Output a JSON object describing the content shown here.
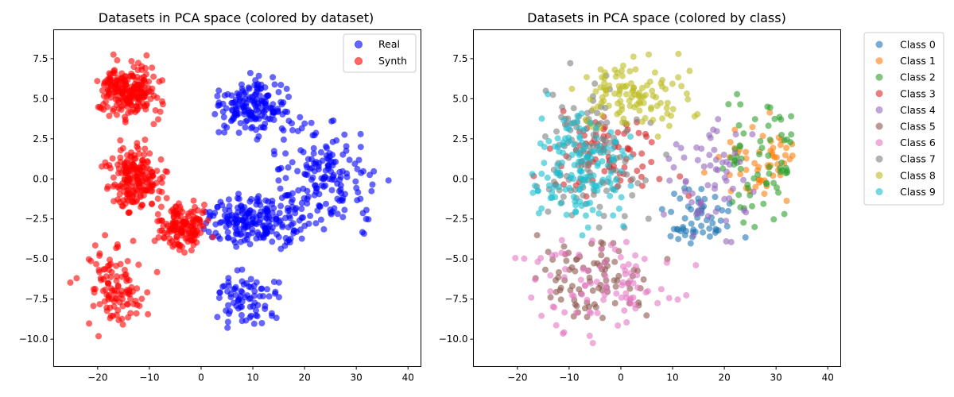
{
  "chart_data": [
    {
      "type": "scatter",
      "title": "Datasets in PCA space (colored by dataset)",
      "xlabel": "",
      "ylabel": "",
      "xlim": [
        -28.5,
        42.5
      ],
      "ylim": [
        -11.7,
        9.3
      ],
      "xticks": [
        -20,
        -10,
        0,
        10,
        20,
        30,
        40
      ],
      "yticks": [
        -10.0,
        -7.5,
        -5.0,
        -2.5,
        0.0,
        2.5,
        5.0,
        7.5
      ],
      "grid": false,
      "legend_position": "top-right",
      "series": [
        {
          "name": "Real",
          "color": "#0000ff",
          "clusters": [
            {
              "x_range": [
                0,
                20
              ],
              "y_range": [
                2,
                7
              ],
              "n": 170
            },
            {
              "x_range": [
                10,
                38
              ],
              "y_range": [
                -4.5,
                4.5
              ],
              "n": 170
            },
            {
              "x_range": [
                -5,
                25
              ],
              "y_range": [
                -5,
                -0.5
              ],
              "n": 200
            },
            {
              "x_range": [
                0,
                18
              ],
              "y_range": [
                -10,
                -5
              ],
              "n": 80
            }
          ]
        },
        {
          "name": "Synth",
          "color": "#ff0000",
          "clusters": [
            {
              "x_range": [
                -22,
                -6
              ],
              "y_range": [
                3,
                8
              ],
              "n": 230
            },
            {
              "x_range": [
                -20,
                -5
              ],
              "y_range": [
                -3,
                3
              ],
              "n": 200
            },
            {
              "x_range": [
                -10,
                4
              ],
              "y_range": [
                -5,
                -1
              ],
              "n": 150
            },
            {
              "x_range": [
                -26,
                -8
              ],
              "y_range": [
                -10.5,
                -3
              ],
              "n": 110
            }
          ]
        }
      ]
    },
    {
      "type": "scatter",
      "title": "Datasets in PCA space (colored by class)",
      "xlabel": "",
      "ylabel": "",
      "xlim": [
        -28.5,
        42.5
      ],
      "ylim": [
        -11.7,
        9.3
      ],
      "xticks": [
        -20,
        -10,
        0,
        10,
        20,
        30,
        40
      ],
      "yticks": [
        -10.0,
        -7.5,
        -5.0,
        -2.5,
        0.0,
        2.5,
        5.0,
        7.5
      ],
      "grid": false,
      "legend_position": "outside-right",
      "series": [
        {
          "name": "Class 0",
          "color": "#1f77b4",
          "clusters": [
            {
              "x_range": [
                5,
                25
              ],
              "y_range": [
                -5,
                0
              ],
              "n": 55
            }
          ]
        },
        {
          "name": "Class 1",
          "color": "#ff7f0e",
          "clusters": [
            {
              "x_range": [
                15,
                38
              ],
              "y_range": [
                -3,
                5
              ],
              "n": 55
            }
          ]
        },
        {
          "name": "Class 2",
          "color": "#2ca02c",
          "clusters": [
            {
              "x_range": [
                18,
                38
              ],
              "y_range": [
                -5,
                7
              ],
              "n": 65
            }
          ]
        },
        {
          "name": "Class 3",
          "color": "#d62728",
          "clusters": [
            {
              "x_range": [
                -20,
                15
              ],
              "y_range": [
                -3,
                6
              ],
              "n": 75
            }
          ]
        },
        {
          "name": "Class 4",
          "color": "#9467bd",
          "clusters": [
            {
              "x_range": [
                5,
                30
              ],
              "y_range": [
                -5,
                5
              ],
              "n": 60
            }
          ]
        },
        {
          "name": "Class 5",
          "color": "#8c564b",
          "clusters": [
            {
              "x_range": [
                -22,
                12
              ],
              "y_range": [
                -10.5,
                -2
              ],
              "n": 85
            }
          ]
        },
        {
          "name": "Class 6",
          "color": "#e377c2",
          "clusters": [
            {
              "x_range": [
                -26,
                20
              ],
              "y_range": [
                -10.5,
                -3
              ],
              "n": 90
            }
          ]
        },
        {
          "name": "Class 7",
          "color": "#7f7f7f",
          "clusters": [
            {
              "x_range": [
                -20,
                10
              ],
              "y_range": [
                -5,
                8
              ],
              "n": 130
            }
          ]
        },
        {
          "name": "Class 8",
          "color": "#bcbd22",
          "clusters": [
            {
              "x_range": [
                -15,
                20
              ],
              "y_range": [
                2,
                8.5
              ],
              "n": 110
            }
          ]
        },
        {
          "name": "Class 9",
          "color": "#17becf",
          "clusters": [
            {
              "x_range": [
                -20,
                5
              ],
              "y_range": [
                -5,
                6
              ],
              "n": 140
            }
          ]
        }
      ]
    }
  ]
}
